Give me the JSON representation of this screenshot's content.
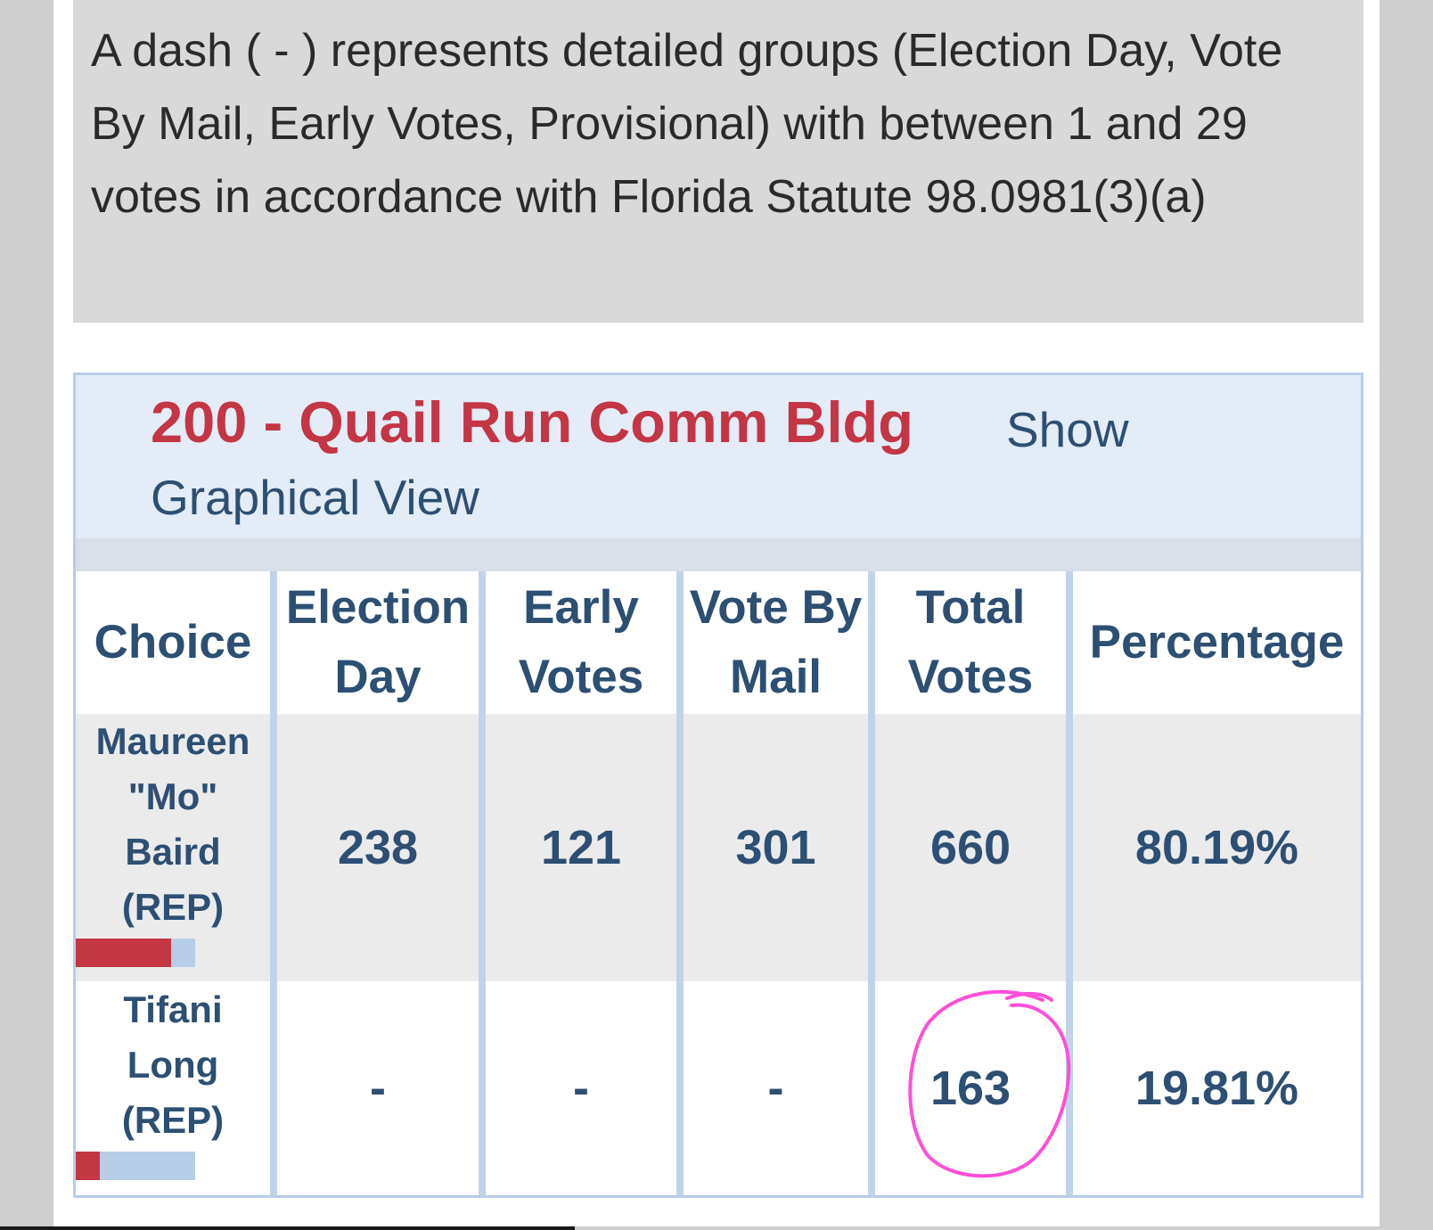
{
  "notice": {
    "text": "A dash ( - ) represents detailed groups (Election Day, Vote By Mail, Early Votes, Provisional) with between 1 and 29 votes in accordance with Florida Statute 98.0981(3)(a)"
  },
  "precinct": {
    "title": "200 - Quail Run Comm Bldg",
    "show_label": "Show",
    "graphical_label": "Graphical View"
  },
  "table": {
    "headers": {
      "choice": "Choice",
      "election_day_1": "Election",
      "election_day_2": "Day",
      "early_1": "Early",
      "early_2": "Votes",
      "mail_1": "Vote By",
      "mail_2": "Mail",
      "total_1": "Total",
      "total_2": "Votes",
      "percentage": "Percentage"
    },
    "rows": [
      {
        "name_lines": [
          "Maureen",
          "\"Mo\"",
          "Baird",
          "(REP)"
        ],
        "election_day": "238",
        "early_votes": "121",
        "vote_by_mail": "301",
        "total_votes": "660",
        "percentage": "80.19%",
        "bar_fraction": 0.8019
      },
      {
        "name_lines": [
          "Tifani",
          "Long",
          "(REP)"
        ],
        "election_day": "-",
        "early_votes": "-",
        "vote_by_mail": "-",
        "total_votes": "163",
        "percentage": "19.81%",
        "bar_fraction": 0.1981
      }
    ]
  },
  "colors": {
    "party_red": "#c43545",
    "link_blue": "#2d4f73",
    "bar_track": "#b8cde6",
    "annotation_pink": "#ff4fd8"
  }
}
